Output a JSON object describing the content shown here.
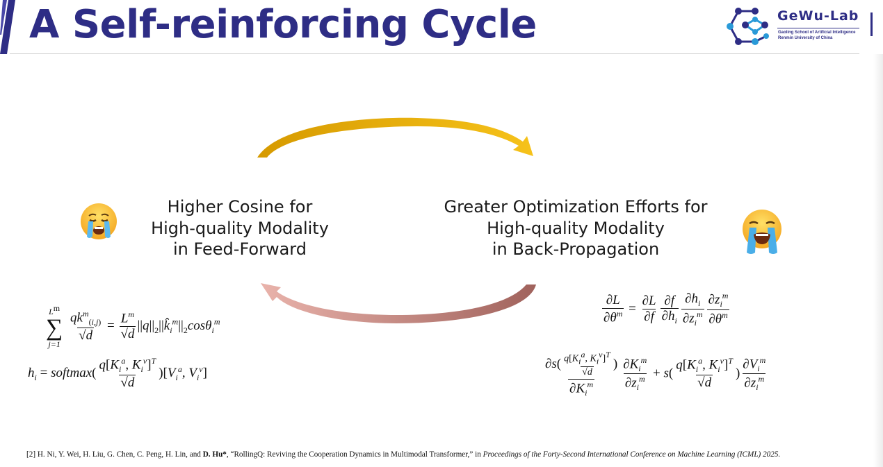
{
  "slide": {
    "title": "A Self-reinforcing Cycle",
    "colors": {
      "title": "#2e2d85",
      "arrow_top": "#e0a400",
      "arrow_bottom": "#b07a74"
    }
  },
  "logo": {
    "name": "GeWu-Lab",
    "subtitle_line1": "Gaoling School of Artificial Intelligence",
    "subtitle_line2": "Renmin University of China",
    "icon": "network-graph-icon"
  },
  "cycle": {
    "left_node": {
      "lines": [
        "Higher Cosine for",
        "High-quality Modality",
        "in Feed-Forward"
      ],
      "icon": "crying-face-emoji"
    },
    "right_node": {
      "lines": [
        "Greater Optimization Efforts for",
        "High-quality Modality",
        "in Back-Propagation"
      ],
      "icon": "loudly-crying-face-emoji"
    }
  },
  "formulas": {
    "left": {
      "eq1": {
        "sum_top": "L",
        "sum_top_sup": "m",
        "sum_bottom": "j=1"
      },
      "eq2": {
        "lhs": "h",
        "func": "softmax"
      }
    },
    "right": {
      "eq3_lhs": "∂L",
      "eq4_term": "s"
    }
  },
  "citation": {
    "prefix": "[2] H. Ni, Y. Wei, H. Liu, G. Chen, C. Peng, H. Lin, and ",
    "bold_author": "D. Hu*",
    "middle": ", “RollingQ: Reviving the Cooperation Dynamics in Multimodal Transformer,” in ",
    "venue": "Proceedings of the Forty-Second International Conference on Machine Learning (ICML) 2025."
  }
}
